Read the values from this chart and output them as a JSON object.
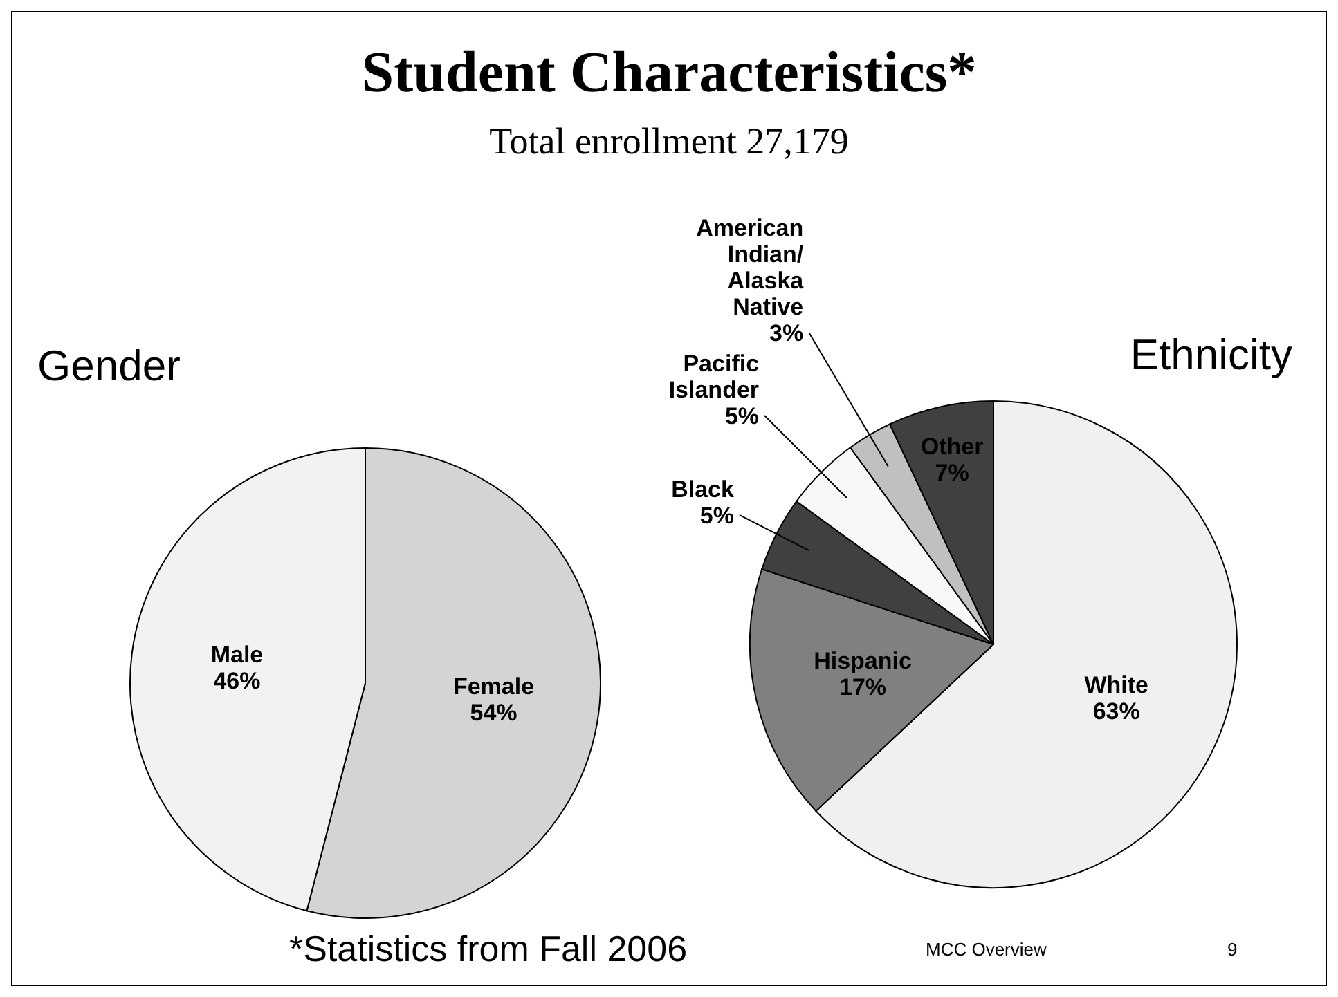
{
  "chart_data": [
    {
      "type": "other",
      "title": "Student Characteristics*",
      "subtitle": "Total enrollment 27,179",
      "annotations": [
        "*Statistics from Fall 2006",
        "MCC Overview",
        "9"
      ]
    },
    {
      "type": "pie",
      "title": "Gender",
      "categories": [
        "Female",
        "Male"
      ],
      "values": [
        54,
        46
      ],
      "value_labels": [
        "54%",
        "46%"
      ],
      "colors": [
        "#d4d4d4",
        "#f2f2f2"
      ],
      "legend": false
    },
    {
      "type": "pie",
      "title": "Ethnicity",
      "categories": [
        "White",
        "Hispanic",
        "Black",
        "Pacific Islander",
        "American Indian/Alaska Native",
        "Other"
      ],
      "values": [
        63,
        17,
        5,
        5,
        3,
        7
      ],
      "value_labels": [
        "63%",
        "17%",
        "5%",
        "5%",
        "3%",
        "7%"
      ],
      "colors": [
        "#f0f0f0",
        "#808080",
        "#404040",
        "#f8f8f8",
        "#c0c0c0",
        "#404040"
      ],
      "legend": false
    }
  ]
}
